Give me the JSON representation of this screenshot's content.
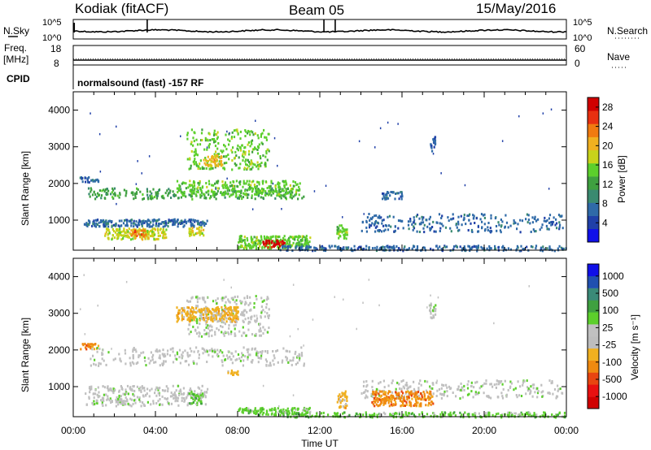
{
  "header": {
    "station": "Kodiak (fitACF)",
    "beam": "Beam 05",
    "date": "15/May/2016"
  },
  "strips": {
    "nsky_label": "N.Sky",
    "nsky_top": "10^5",
    "nsky_bottom": "10^0",
    "nsearch_label": "N.Search",
    "nsearch_top": "10^5",
    "nsearch_bottom": "10^0",
    "freq_label": "Freq.",
    "freq_unit": "[MHz]",
    "freq_top": "18",
    "freq_bottom": "8",
    "nave_label": "Nave",
    "nave_top": "60",
    "nave_bottom": "0",
    "cpid_label": "CPID",
    "mode_text": "normalsound (fast) -157 RF"
  },
  "colors": {
    "power_scale": [
      "#1010e8",
      "#2040a8",
      "#2f6aa8",
      "#3a8a70",
      "#3fa040",
      "#5ccf2c",
      "#c8d21a",
      "#f0b020",
      "#f07a10",
      "#e83010",
      "#d00000"
    ],
    "velocity_scale": [
      "#1010e8",
      "#2050b0",
      "#3a8a78",
      "#3fa040",
      "#5ccf2c",
      "#c0c0c0",
      "#bdbdbd",
      "#f0b020",
      "#f08a10",
      "#e84510",
      "#e81010",
      "#d00000"
    ]
  },
  "chart_data": [
    {
      "type": "heatmap",
      "name": "Power",
      "ylabel": "Slant Range [km]",
      "y_ticks": [
        "1000",
        "2000",
        "3000",
        "4000"
      ],
      "ylim": [
        180,
        4500
      ],
      "colorbar_label": "Power [dB]",
      "colorbar_ticks": [
        "4",
        "8",
        "12",
        "16",
        "20",
        "24",
        "28"
      ],
      "colorbar_range": [
        0,
        30
      ],
      "echo_regions": [
        {
          "t0": 0.3,
          "t1": 1.2,
          "r0": 2050,
          "r1": 2200,
          "value": 8
        },
        {
          "t0": 0.7,
          "t1": 11.2,
          "r0": 1600,
          "r1": 1900,
          "value": 12
        },
        {
          "t0": 5.0,
          "t1": 11.0,
          "r0": 1700,
          "r1": 2100,
          "value": 16
        },
        {
          "t0": 5.5,
          "t1": 9.5,
          "r0": 2400,
          "r1": 3500,
          "value": 14
        },
        {
          "t0": 6.3,
          "t1": 7.2,
          "r0": 2500,
          "r1": 2800,
          "value": 20
        },
        {
          "t0": 0.5,
          "t1": 6.5,
          "r0": 850,
          "r1": 1050,
          "value": 8
        },
        {
          "t0": 1.5,
          "t1": 4.5,
          "r0": 500,
          "r1": 800,
          "value": 18
        },
        {
          "t0": 2.8,
          "t1": 3.5,
          "r0": 550,
          "r1": 750,
          "value": 22
        },
        {
          "t0": 5.6,
          "t1": 6.3,
          "r0": 600,
          "r1": 850,
          "value": 18
        },
        {
          "t0": 8.0,
          "t1": 11.5,
          "r0": 250,
          "r1": 600,
          "value": 16
        },
        {
          "t0": 9.2,
          "t1": 10.3,
          "r0": 280,
          "r1": 480,
          "value": 28
        },
        {
          "t0": 12.8,
          "t1": 13.3,
          "r0": 500,
          "r1": 900,
          "value": 14
        },
        {
          "t0": 14.0,
          "t1": 23.8,
          "r0": 700,
          "r1": 1200,
          "value": 8
        },
        {
          "t0": 15.0,
          "t1": 16.0,
          "r0": 1600,
          "r1": 1800,
          "value": 8
        },
        {
          "t0": 17.3,
          "t1": 17.6,
          "r0": 2900,
          "r1": 3300,
          "value": 6
        },
        {
          "t0": 10.0,
          "t1": 24.0,
          "r0": 190,
          "r1": 330,
          "value": 8
        }
      ]
    },
    {
      "type": "heatmap",
      "name": "Velocity",
      "ylabel": "Slant Range [km]",
      "y_ticks": [
        "1000",
        "2000",
        "3000",
        "4000"
      ],
      "ylim": [
        180,
        4500
      ],
      "colorbar_label": "Velocity [m s⁻¹]",
      "colorbar_ticks": [
        "1000",
        "500",
        "100",
        "25",
        "-25",
        "-100",
        "-500",
        "-1000"
      ],
      "echo_regions": [
        {
          "t0": 0.3,
          "t1": 1.2,
          "r0": 2050,
          "r1": 2200,
          "value": -200
        },
        {
          "t0": 0.7,
          "t1": 11.2,
          "r0": 1600,
          "r1": 2100,
          "value": 0
        },
        {
          "t0": 5.5,
          "t1": 9.5,
          "r0": 2400,
          "r1": 3500,
          "value": 0
        },
        {
          "t0": 5.0,
          "t1": 8.0,
          "r0": 2800,
          "r1": 3200,
          "value": -150
        },
        {
          "t0": 0.5,
          "t1": 6.5,
          "r0": 500,
          "r1": 1050,
          "value": 0
        },
        {
          "t0": 2.0,
          "t1": 2.6,
          "r0": 500,
          "r1": 700,
          "value": 0
        },
        {
          "t0": 5.6,
          "t1": 6.3,
          "r0": 550,
          "r1": 850,
          "value": 80
        },
        {
          "t0": 7.5,
          "t1": 8.0,
          "r0": 1350,
          "r1": 1500,
          "value": -150
        },
        {
          "t0": 8.0,
          "t1": 11.5,
          "r0": 250,
          "r1": 450,
          "value": 80
        },
        {
          "t0": 12.8,
          "t1": 13.3,
          "r0": 450,
          "r1": 900,
          "value": -150
        },
        {
          "t0": 14.0,
          "t1": 23.8,
          "r0": 700,
          "r1": 1200,
          "value": 0
        },
        {
          "t0": 14.5,
          "t1": 17.5,
          "r0": 500,
          "r1": 900,
          "value": -200
        },
        {
          "t0": 17.3,
          "t1": 17.6,
          "r0": 2900,
          "r1": 3300,
          "value": 0
        },
        {
          "t0": 10.0,
          "t1": 24.0,
          "r0": 190,
          "r1": 330,
          "value": 80
        }
      ]
    }
  ],
  "xaxis": {
    "label": "Time UT",
    "ticks": [
      "00:00",
      "04:00",
      "08:00",
      "12:00",
      "16:00",
      "20:00",
      "00:00"
    ]
  }
}
